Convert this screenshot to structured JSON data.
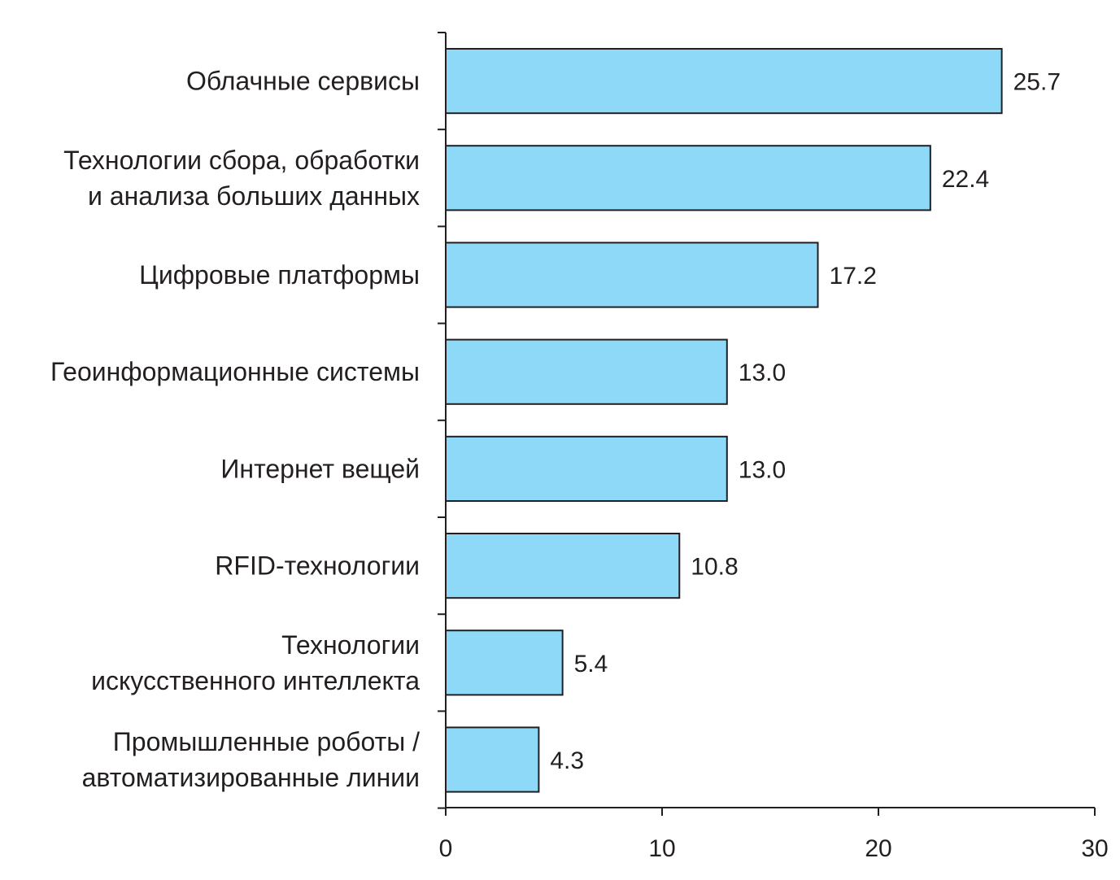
{
  "chart_data": {
    "type": "bar",
    "orientation": "horizontal",
    "categories": [
      [
        "Облачные сервисы"
      ],
      [
        "Технологии сбора, обработки",
        "и анализа больших данных"
      ],
      [
        "Цифровые платформы"
      ],
      [
        "Геоинформационные системы"
      ],
      [
        "Интернет вещей"
      ],
      [
        "RFID-технологии"
      ],
      [
        "Технологии",
        "искусственного интеллекта"
      ],
      [
        "Промышленные роботы /",
        "автоматизированные линии"
      ]
    ],
    "values": [
      25.7,
      22.4,
      17.2,
      13.0,
      13.0,
      10.8,
      5.4,
      4.3
    ],
    "value_labels": [
      "25.7",
      "22.4",
      "17.2",
      "13.0",
      "13.0",
      "10.8",
      "5.4",
      "4.3"
    ],
    "xlim": [
      0,
      30
    ],
    "xticks": [
      0,
      10,
      20,
      30
    ],
    "xtick_labels": [
      "0",
      "10",
      "20",
      "30"
    ],
    "grid": false,
    "bar_color": "#8ed8f8",
    "bar_edge_color": "#231f20",
    "axis_color": "#231f20",
    "text_color": "#231f20"
  }
}
